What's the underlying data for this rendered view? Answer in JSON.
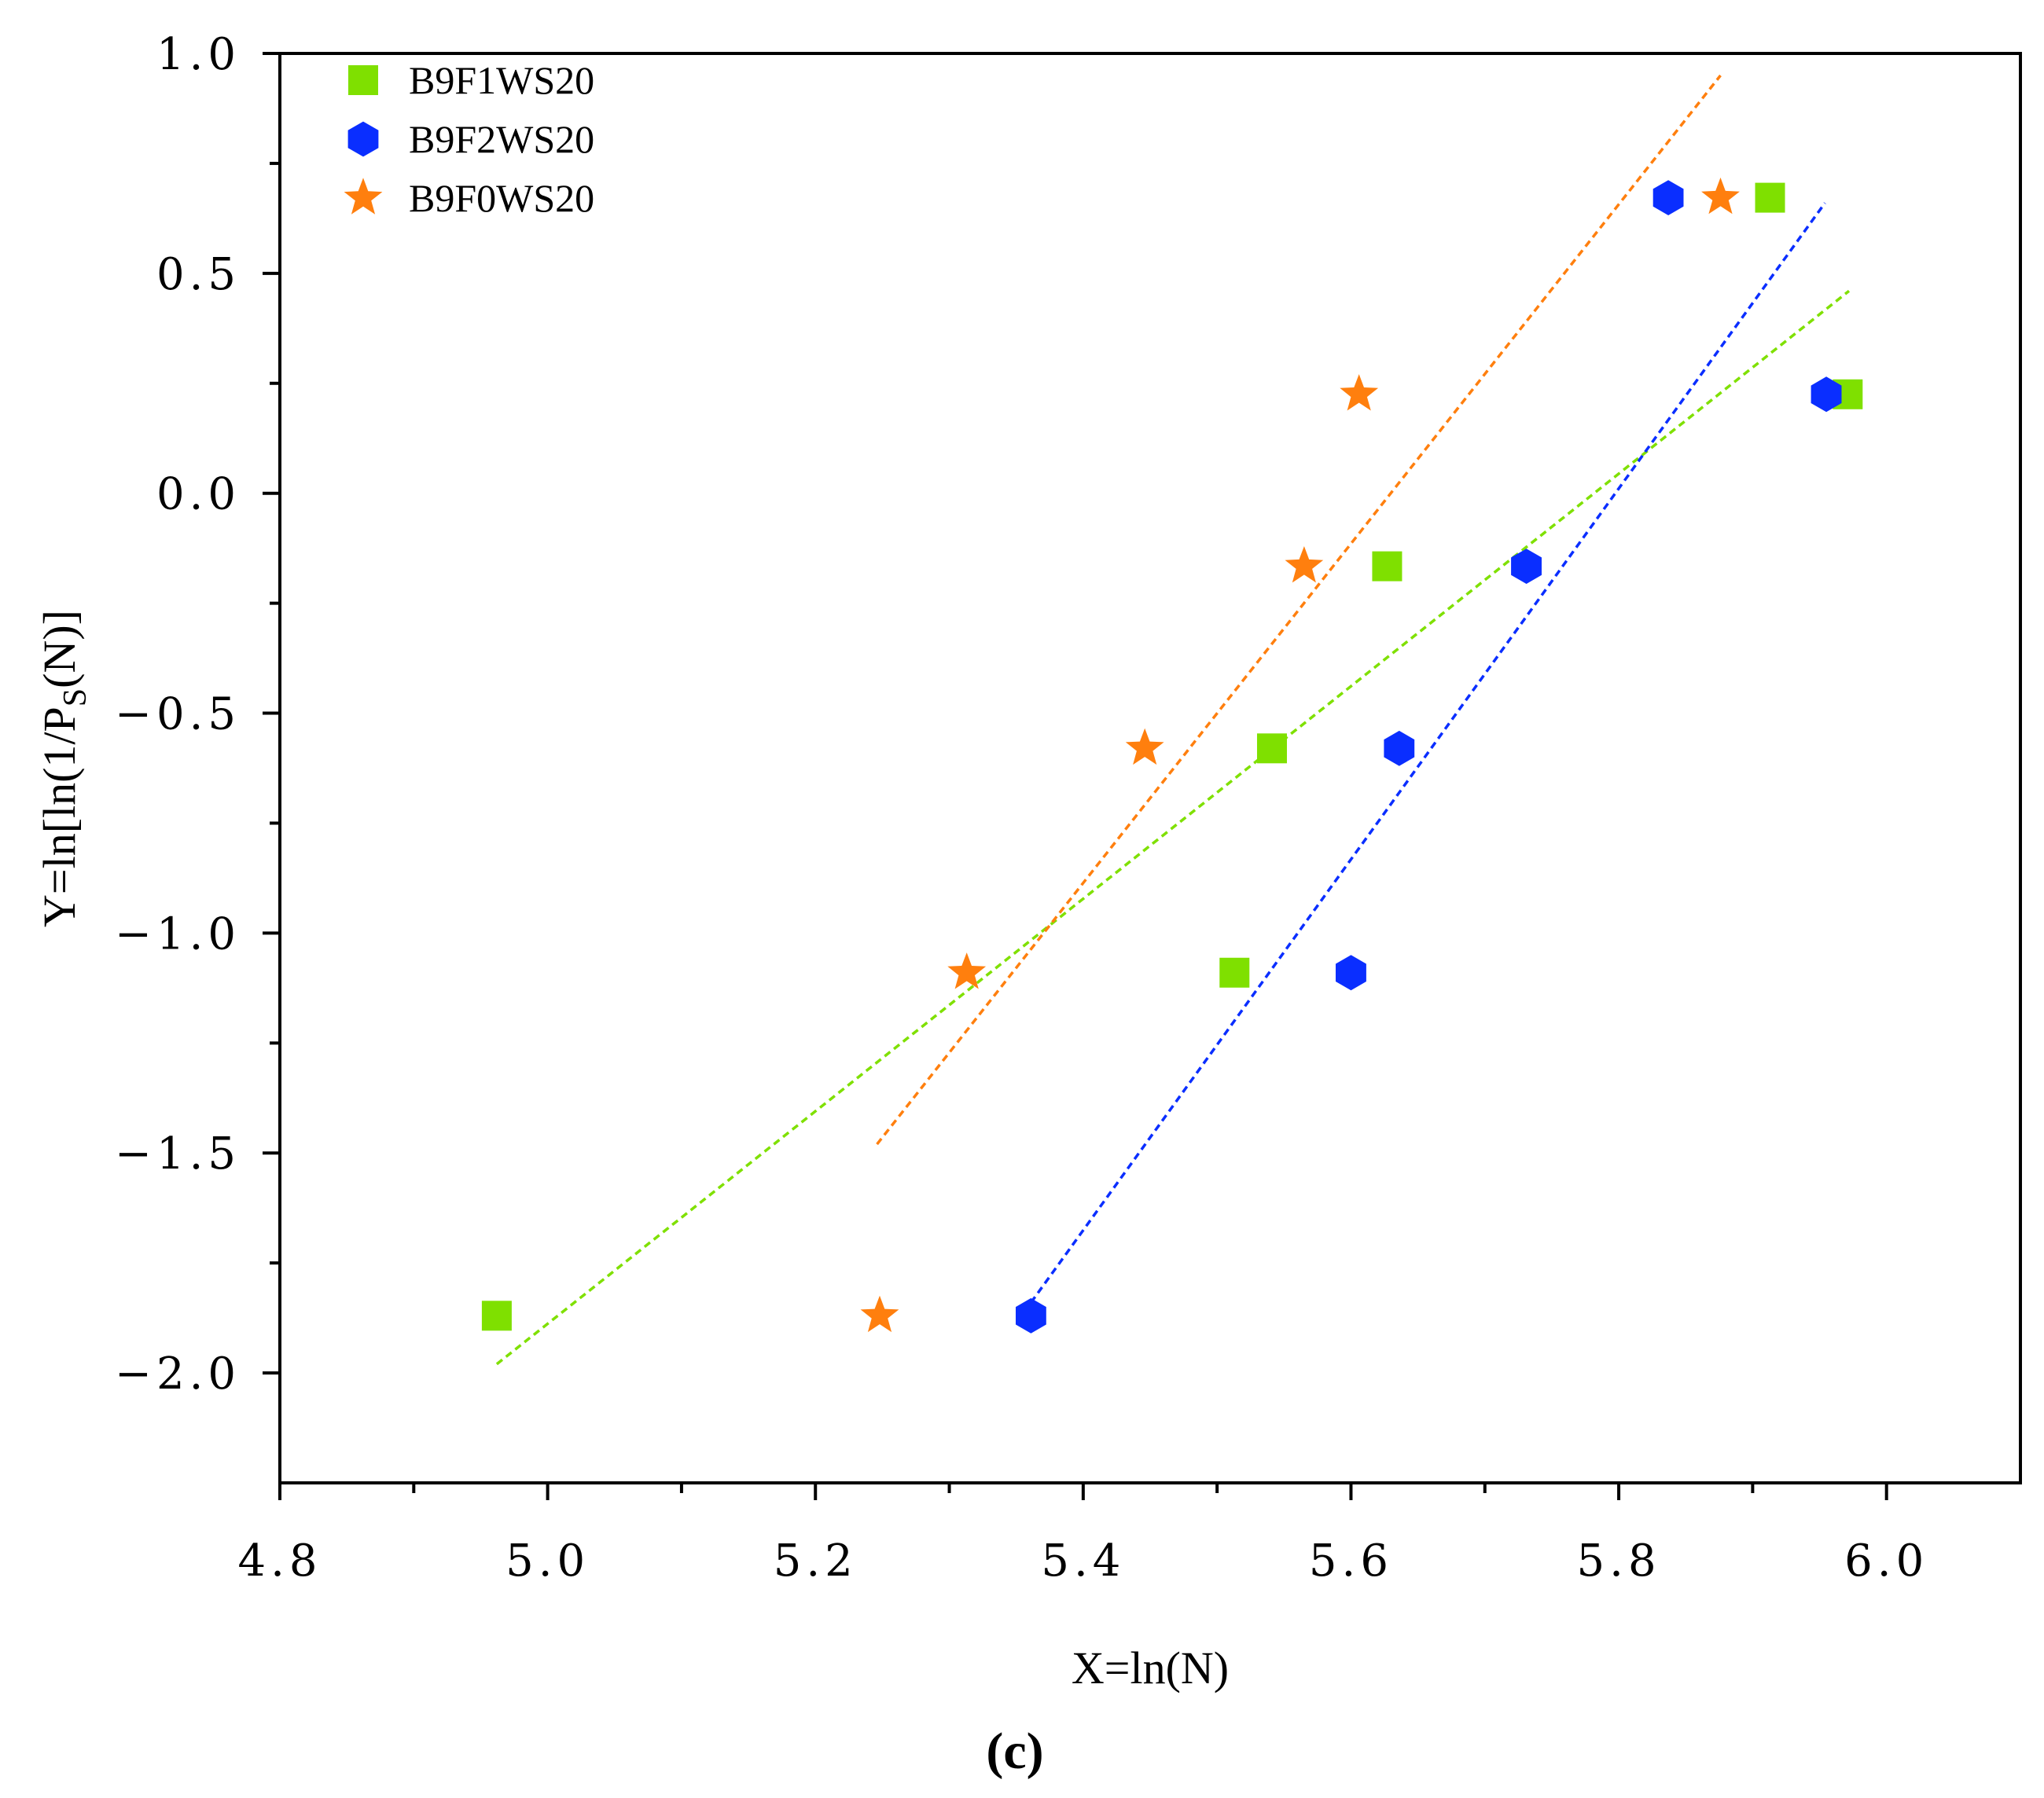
{
  "chart_data": {
    "type": "scatter",
    "caption": "(c)",
    "xlabel": "X=ln(N)",
    "ylabel": {
      "main": "Y=ln[ln(1/P",
      "sub": "S",
      "end": "(N)]"
    },
    "xlim": [
      4.8,
      6.1
    ],
    "ylim": [
      -2.25,
      1.0
    ],
    "xticks": [
      4.8,
      5.0,
      5.2,
      5.4,
      5.6,
      5.8,
      6.0
    ],
    "xtick_labels": [
      "4.8",
      "5.0",
      "5.2",
      "5.4",
      "5.6",
      "5.8",
      "6.0"
    ],
    "yticks": [
      1.0,
      0.5,
      0.0,
      -0.5,
      -1.0,
      -1.5,
      -2.0
    ],
    "ytick_labels": [
      "1.0",
      "0.5",
      "0.0",
      "−0.5",
      "−1.0",
      "−1.5",
      "−2.0"
    ],
    "legend_position": "top-left",
    "series": [
      {
        "name": "B9F1WS20",
        "marker": "square",
        "color": "#7FE000",
        "x": [
          4.962,
          5.513,
          5.541,
          5.627,
          5.913,
          5.971
        ],
        "y": [
          -1.87,
          -1.09,
          -0.58,
          -0.166,
          0.672,
          0.225
        ],
        "fit": {
          "x": [
            4.962,
            5.972
          ],
          "y": [
            -1.98,
            0.46
          ]
        }
      },
      {
        "name": "B9F2WS20",
        "marker": "hexagon",
        "color": "#0A2EFF",
        "x": [
          5.361,
          5.6,
          5.636,
          5.731,
          5.837,
          5.955
        ],
        "y": [
          -1.87,
          -1.09,
          -0.58,
          -0.166,
          0.672,
          0.225
        ],
        "fit": {
          "x": [
            5.361,
            5.954
          ],
          "y": [
            -1.84,
            0.66
          ]
        }
      },
      {
        "name": "B9F0WS20",
        "marker": "star",
        "color": "#FF7F0E",
        "x": [
          5.248,
          5.313,
          5.446,
          5.565,
          5.606,
          5.876
        ],
        "y": [
          -1.87,
          -1.09,
          -0.58,
          -0.166,
          0.225,
          0.672
        ],
        "fit": {
          "x": [
            5.246,
            5.876
          ],
          "y": [
            -1.48,
            0.95
          ]
        }
      }
    ]
  }
}
